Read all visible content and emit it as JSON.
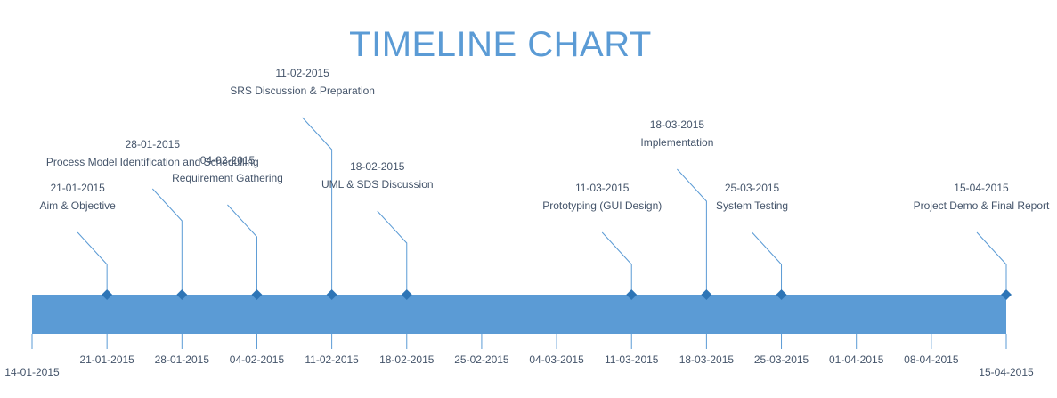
{
  "chart_data": {
    "type": "timeline",
    "title": "TIMELINE CHART",
    "start_date": "14-01-2015",
    "end_date": "15-04-2015",
    "tick_labels": [
      "14-01-2015",
      "21-01-2015",
      "28-01-2015",
      "04-02-2015",
      "11-02-2015",
      "18-02-2015",
      "25-02-2015",
      "04-03-2015",
      "11-03-2015",
      "18-03-2015",
      "25-03-2015",
      "01-04-2015",
      "08-04-2015",
      "15-04-2015"
    ],
    "milestones": [
      {
        "date": "21-01-2015",
        "label": "Aim & Objective"
      },
      {
        "date": "28-01-2015",
        "label": "Process Model Identification and Schedulling"
      },
      {
        "date": "04-02-2015",
        "label": "Requirement Gathering"
      },
      {
        "date": "11-02-2015",
        "label": "SRS Discussion & Preparation"
      },
      {
        "date": "18-02-2015",
        "label": "UML & SDS Discussion"
      },
      {
        "date": "11-03-2015",
        "label": "Prototyping (GUI Design)"
      },
      {
        "date": "18-03-2015",
        "label": "Implementation"
      },
      {
        "date": "25-03-2015",
        "label": "System Testing"
      },
      {
        "date": "15-04-2015",
        "label": "Project Demo & Final Report"
      }
    ],
    "colors": {
      "bar": "#5b9bd5",
      "marker": "#2e75b6",
      "text": "#44546a",
      "title": "#5b9bd5",
      "line": "#5b9bd5"
    }
  }
}
